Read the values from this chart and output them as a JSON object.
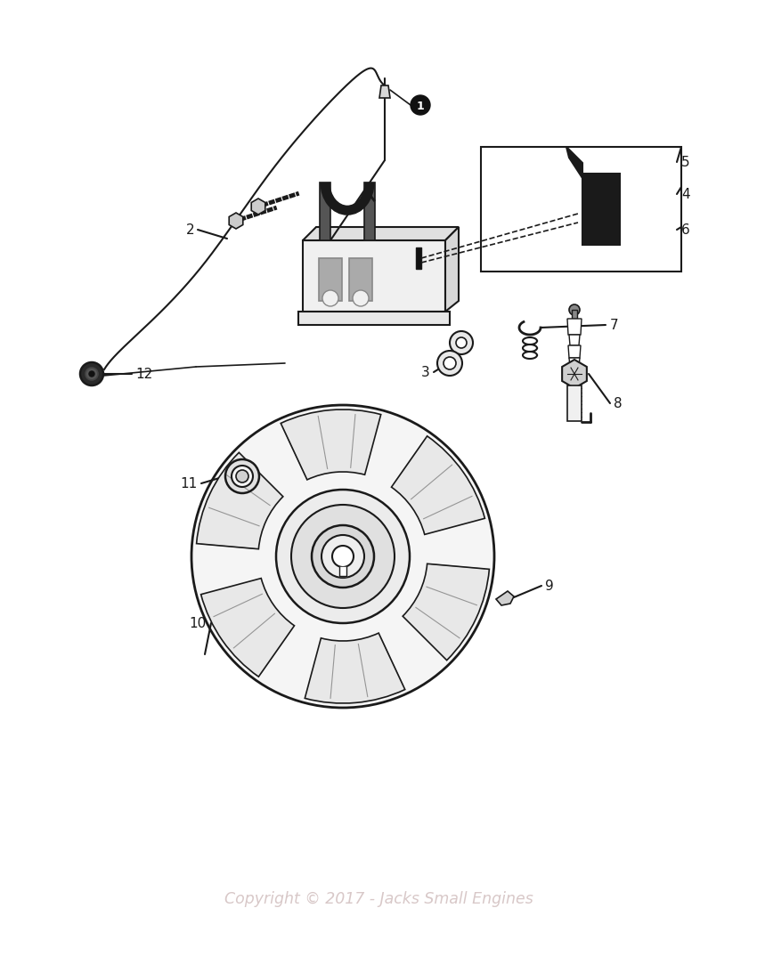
{
  "bg": "#ffffff",
  "lc": "#1a1a1a",
  "copyright": "Copyright © 2017 - Jacks Small Engines",
  "copyright_color": "#d8c8c8",
  "fig_w": 8.5,
  "fig_h": 10.93,
  "dpi": 100
}
